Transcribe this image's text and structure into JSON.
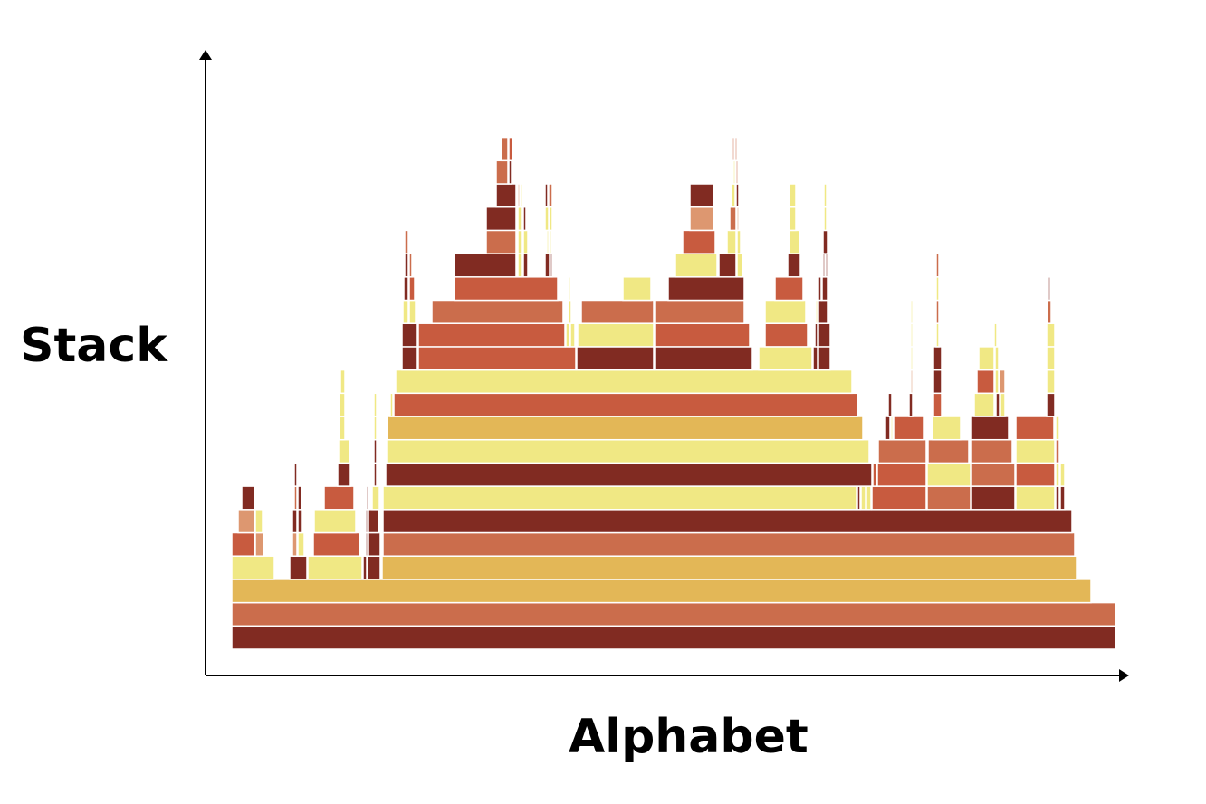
{
  "axes": {
    "y_label": "Stack",
    "x_label": "Alphabet"
  },
  "palette": {
    "dark_red": "#812b22",
    "terracotta": "#cb6d4c",
    "red_orange": "#c85b3f",
    "mustard": "#e3b757",
    "pale_yellow": "#f0e884",
    "peach": "#dd9770"
  }
}
